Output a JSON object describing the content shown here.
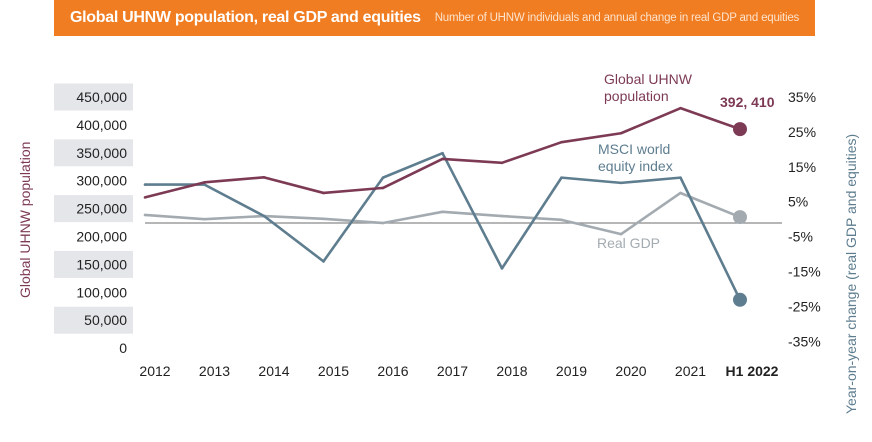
{
  "header": {
    "title": "Global UHNW population, real GDP and equities",
    "subtitle": "Number of UHNW individuals and annual change in real GDP and equities"
  },
  "chart_data": {
    "type": "line",
    "title": "Global UHNW population, real GDP and equities",
    "subtitle": "Number of UHNW individuals and annual change in real GDP and equities",
    "categories": [
      "2012",
      "2013",
      "2014",
      "2015",
      "2016",
      "2017",
      "2018",
      "2019",
      "2020",
      "2021",
      "H1 2022"
    ],
    "y_left": {
      "label": "Global UHNW population",
      "ticks": [
        "450,000",
        "400,000",
        "350,000",
        "300,000",
        "250,000",
        "200,000",
        "150,000",
        "100,000",
        "50,000",
        "0"
      ],
      "range": [
        0,
        450000
      ]
    },
    "y_right": {
      "label": "Year-on-year change (real GDP and equities)",
      "ticks": [
        "35%",
        "25%",
        "15%",
        "5%",
        "-5%",
        "-15%",
        "-25%",
        "-35%"
      ],
      "range": [
        -35,
        35
      ]
    },
    "series": [
      {
        "name": "Global UHNW population",
        "label_lines": [
          "Global UHNW",
          "population"
        ],
        "axis": "left",
        "color": "#7d3a55",
        "values": [
          270000,
          297000,
          306000,
          278000,
          287000,
          339000,
          332000,
          369000,
          385000,
          430000,
          392410
        ],
        "end_label": "392, 410"
      },
      {
        "name": "MSCI world equity index",
        "label_lines": [
          "MSCI world",
          "equity index"
        ],
        "axis": "right",
        "color": "#5e7d8f",
        "values": [
          11,
          11,
          2,
          -11,
          13,
          20,
          -13,
          13,
          11.5,
          13,
          -22
        ]
      },
      {
        "name": "Real GDP",
        "label_lines": [
          "Real GDP"
        ],
        "axis": "right",
        "color": "#a3abb1",
        "values": [
          2.3,
          1.1,
          2.0,
          1.2,
          0,
          3.2,
          2.0,
          0.9,
          -3.2,
          8.6,
          1.7
        ]
      }
    ]
  }
}
